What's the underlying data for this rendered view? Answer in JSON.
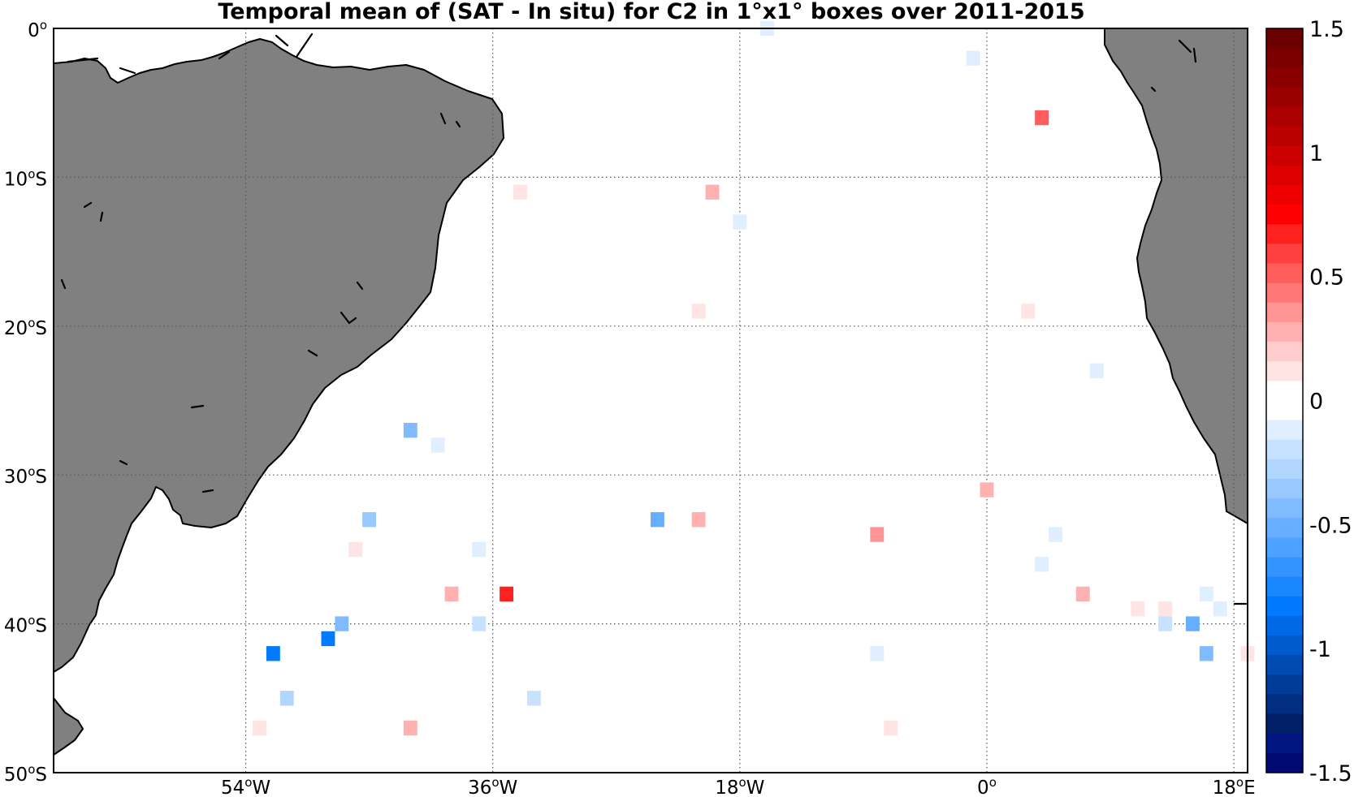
{
  "title": "Temporal mean of (SAT - In situ) for C2 in 1°x1° boxes over 2011-2015",
  "map": {
    "projection": "plate-carree",
    "lon_range": [
      -68,
      19
    ],
    "lat_range": [
      -50,
      0
    ],
    "grid": true,
    "land_color": "#808080",
    "ocean_color": "#ffffff",
    "x_ticks": [
      {
        "lon": -54,
        "num": "54",
        "deg": "o",
        "hem": "W"
      },
      {
        "lon": -36,
        "num": "36",
        "deg": "o",
        "hem": "W"
      },
      {
        "lon": -18,
        "num": "18",
        "deg": "o",
        "hem": "W"
      },
      {
        "lon": 0,
        "num": "0",
        "deg": "o",
        "hem": ""
      },
      {
        "lon": 18,
        "num": "18",
        "deg": "o",
        "hem": "E"
      }
    ],
    "y_ticks": [
      {
        "lat": 0,
        "num": "0",
        "deg": "o",
        "hem": ""
      },
      {
        "lat": -10,
        "num": "10",
        "deg": "o",
        "hem": "S"
      },
      {
        "lat": -20,
        "num": "20",
        "deg": "o",
        "hem": "S"
      },
      {
        "lat": -30,
        "num": "30",
        "deg": "o",
        "hem": "S"
      },
      {
        "lat": -40,
        "num": "40",
        "deg": "o",
        "hem": "S"
      },
      {
        "lat": -50,
        "num": "50",
        "deg": "o",
        "hem": "S"
      }
    ]
  },
  "colorbar": {
    "min": -1.5,
    "max": 1.5,
    "labels": [
      "1.5",
      "1",
      "0.5",
      "0",
      "-0.5",
      "-1",
      "-1.5"
    ],
    "label_values": [
      1.5,
      1,
      0.5,
      0,
      -0.5,
      -1,
      -1.5
    ],
    "colors_top_to_bottom": [
      "#6a0000",
      "#7a0000",
      "#8a0000",
      "#9a0000",
      "#aa0000",
      "#bb0000",
      "#cc0000",
      "#dd0000",
      "#ee0000",
      "#ff0000",
      "#ff2020",
      "#ff4040",
      "#ff5c5c",
      "#ff7878",
      "#ff9494",
      "#ffb0b0",
      "#ffcccc",
      "#ffe4e4",
      "#ffffff",
      "#ffffff",
      "#dfefff",
      "#c7e2ff",
      "#b0d5ff",
      "#99c8ff",
      "#80bbff",
      "#66aeff",
      "#4da1ff",
      "#3394ff",
      "#1a87ff",
      "#007aff",
      "#006ae6",
      "#005bcc",
      "#004cb3",
      "#003d99",
      "#002e80",
      "#001f66",
      "#001580",
      "#000a70"
    ]
  },
  "chart_data": {
    "type": "heatmap",
    "title": "Temporal mean of (SAT - In situ) for C2 in 1°x1° boxes over 2011-2015",
    "xlabel": "",
    "ylabel": "",
    "x_unit": "degrees longitude",
    "y_unit": "degrees latitude",
    "xlim": [
      -68,
      19
    ],
    "ylim": [
      -50,
      0
    ],
    "zlim": [
      -1.5,
      1.5
    ],
    "grid": true,
    "colorbar": "right",
    "cells": [
      {
        "lon": -16,
        "lat": 0,
        "value": -0.08
      },
      {
        "lon": -1,
        "lat": -2,
        "value": -0.12
      },
      {
        "lon": 4,
        "lat": -6,
        "value": 0.55
      },
      {
        "lon": -34,
        "lat": -11,
        "value": 0.1
      },
      {
        "lon": -20,
        "lat": -11,
        "value": 0.3
      },
      {
        "lon": -18,
        "lat": -13,
        "value": -0.1
      },
      {
        "lon": -21,
        "lat": -19,
        "value": 0.15
      },
      {
        "lon": 3,
        "lat": -19,
        "value": 0.15
      },
      {
        "lon": 8,
        "lat": -23,
        "value": -0.12
      },
      {
        "lon": -42,
        "lat": -27,
        "value": -0.45
      },
      {
        "lon": -40,
        "lat": -28,
        "value": -0.1
      },
      {
        "lon": 0,
        "lat": -31,
        "value": 0.25
      },
      {
        "lon": -45,
        "lat": -33,
        "value": -0.35
      },
      {
        "lon": -24,
        "lat": -33,
        "value": -0.55
      },
      {
        "lon": -21,
        "lat": -33,
        "value": 0.3
      },
      {
        "lon": -8,
        "lat": -34,
        "value": 0.35
      },
      {
        "lon": 5,
        "lat": -34,
        "value": -0.12
      },
      {
        "lon": -46,
        "lat": -35,
        "value": 0.15
      },
      {
        "lon": -37,
        "lat": -35,
        "value": -0.15
      },
      {
        "lon": 4,
        "lat": -36,
        "value": -0.15
      },
      {
        "lon": -39,
        "lat": -38,
        "value": 0.3
      },
      {
        "lon": -35,
        "lat": -38,
        "value": 0.7
      },
      {
        "lon": 7,
        "lat": -38,
        "value": 0.3
      },
      {
        "lon": 16,
        "lat": -38,
        "value": -0.1
      },
      {
        "lon": 11,
        "lat": -39,
        "value": 0.15
      },
      {
        "lon": 13,
        "lat": -39,
        "value": 0.15
      },
      {
        "lon": 17,
        "lat": -39,
        "value": -0.12
      },
      {
        "lon": -47,
        "lat": -40,
        "value": -0.45
      },
      {
        "lon": -37,
        "lat": -40,
        "value": -0.2
      },
      {
        "lon": 13,
        "lat": -40,
        "value": -0.2
      },
      {
        "lon": 15,
        "lat": -40,
        "value": -0.5
      },
      {
        "lon": -48,
        "lat": -41,
        "value": -0.85
      },
      {
        "lon": -52,
        "lat": -42,
        "value": -0.8
      },
      {
        "lon": -8,
        "lat": -42,
        "value": -0.1
      },
      {
        "lon": 16,
        "lat": -42,
        "value": -0.4
      },
      {
        "lon": 19,
        "lat": -42,
        "value": 0.15
      },
      {
        "lon": -51,
        "lat": -45,
        "value": -0.3
      },
      {
        "lon": -33,
        "lat": -45,
        "value": -0.2
      },
      {
        "lon": -53,
        "lat": -47,
        "value": 0.15
      },
      {
        "lon": -42,
        "lat": -47,
        "value": 0.3
      },
      {
        "lon": -7,
        "lat": -47,
        "value": 0.15
      }
    ]
  }
}
